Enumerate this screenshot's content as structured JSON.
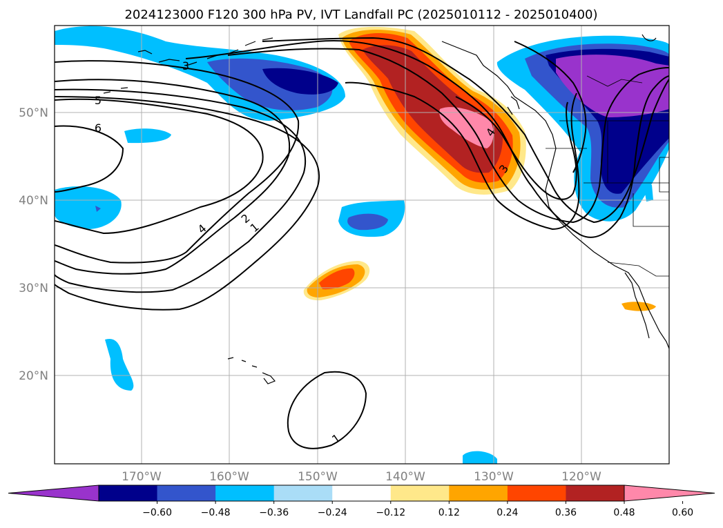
{
  "title": "2024123000 F120 300 hPa PV, IVT Landfall PC (2025010112 - 2025010400)",
  "lat_ticks": [
    "50°N",
    "40°N",
    "30°N",
    "20°N"
  ],
  "lon_ticks": [
    "170°W",
    "160°W",
    "150°W",
    "140°W",
    "130°W",
    "120°W"
  ],
  "colorbar": {
    "ticks": [
      "−0.60",
      "−0.48",
      "−0.36",
      "−0.24",
      "−0.12",
      "0.12",
      "0.24",
      "0.36",
      "0.48",
      "0.60"
    ],
    "colors": [
      "#9933cc",
      "#00008b",
      "#3355cc",
      "#00bfff",
      "#aaddf7",
      "#ffffff",
      "#ffe88a",
      "#ffa500",
      "#ff4500",
      "#b22222",
      "#ff88aa"
    ]
  },
  "pv_contour_labels": [
    "3",
    "5",
    "6",
    "4",
    "2",
    "1",
    "4",
    "3",
    "1"
  ],
  "chart_data": {
    "type": "contour-map",
    "title": "2024123000 F120 300 hPa PV, IVT Landfall PC (2025010112 - 2025010400)",
    "fill_field": "IVT Landfall PC",
    "contour_field": "300 hPa PV",
    "lon_range": [
      -180,
      -110
    ],
    "lat_range": [
      10,
      60
    ],
    "fill_levels": [
      -0.6,
      -0.48,
      -0.36,
      -0.24,
      -0.12,
      0.12,
      0.24,
      0.36,
      0.48,
      0.6
    ],
    "contour_levels": [
      1,
      2,
      3,
      4,
      5,
      6
    ],
    "colorbar_extend": "both",
    "grid": true
  }
}
